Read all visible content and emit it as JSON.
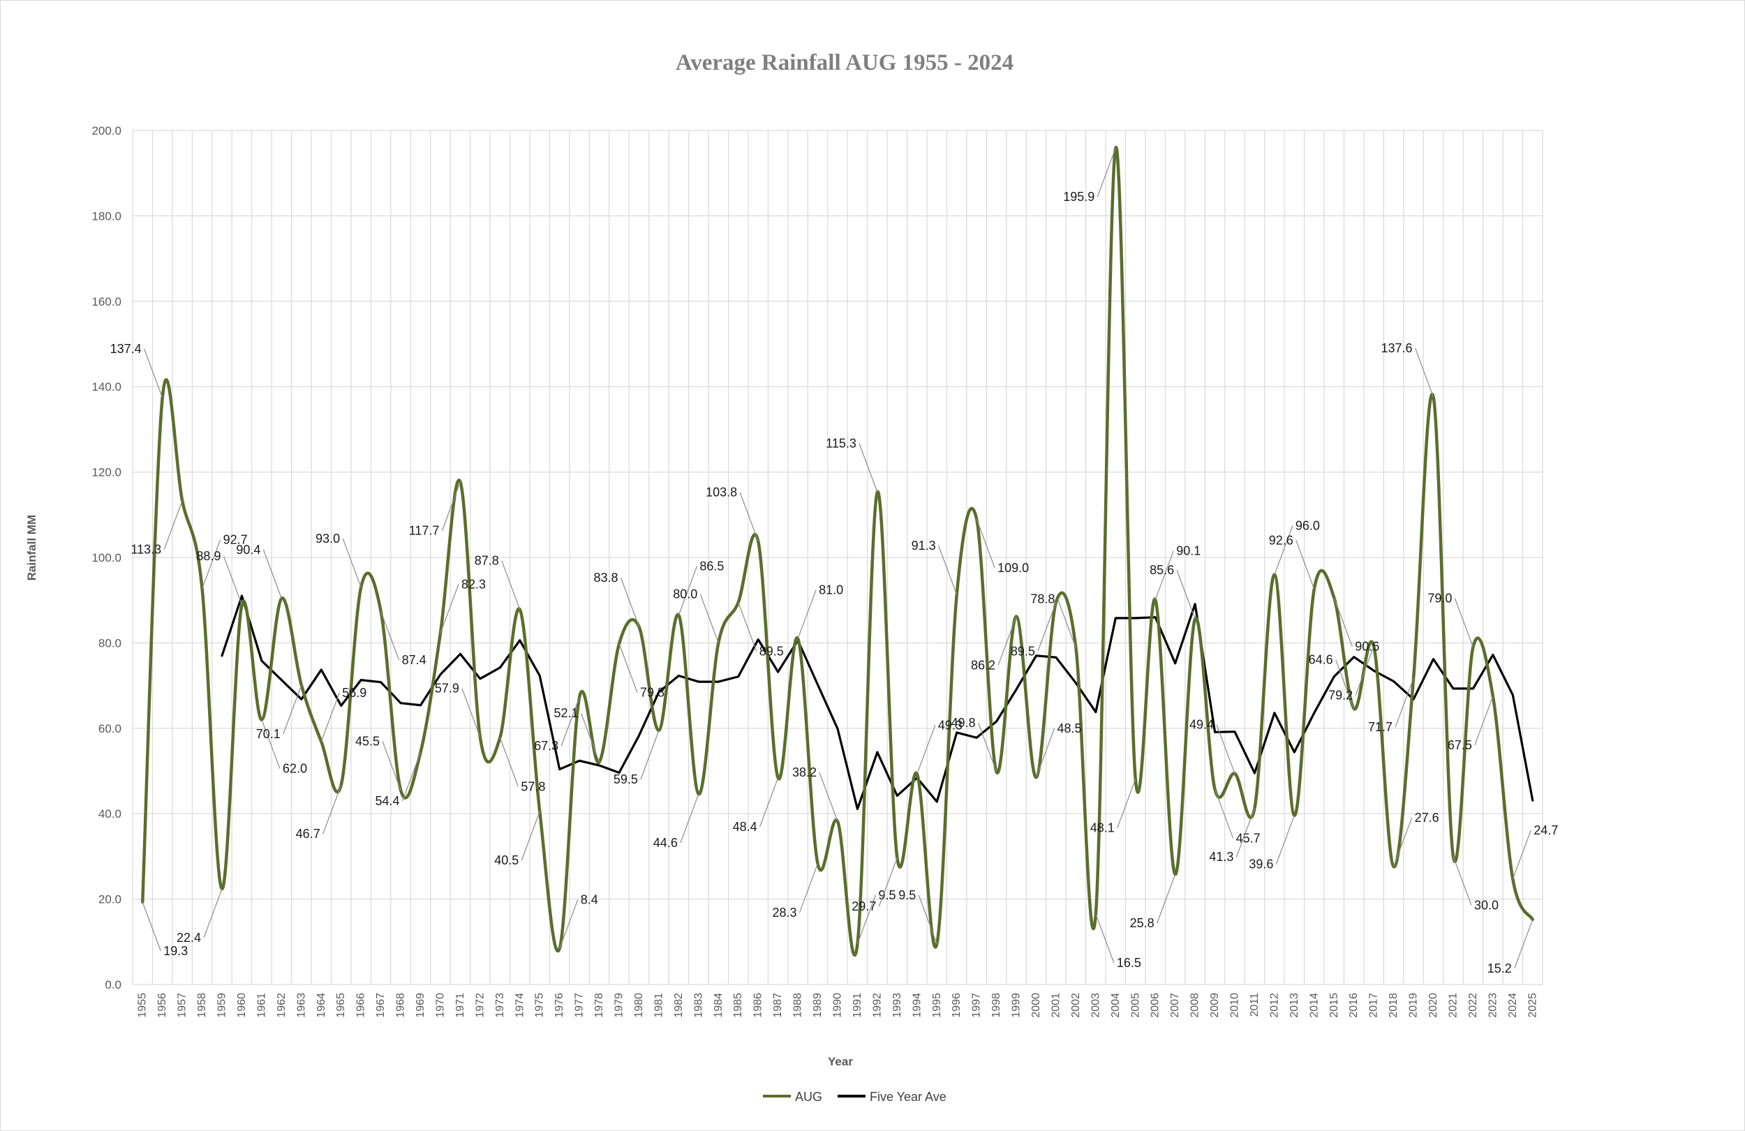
{
  "chart_data": {
    "type": "line",
    "title": "Average Rainfall AUG 1955 - 2024",
    "xlabel": "Year",
    "ylabel": "Rainfall MM",
    "ylim": [
      0,
      200
    ],
    "ytick_step": 20,
    "y_decimals": 1,
    "grid": true,
    "legend_position": "bottom",
    "x": [
      "1955",
      "1956",
      "1957",
      "1958",
      "1959",
      "1960",
      "1961",
      "1962",
      "1963",
      "1964",
      "1965",
      "1966",
      "1967",
      "1968",
      "1969",
      "1970",
      "1971",
      "1972",
      "1973",
      "1974",
      "1975",
      "1976",
      "1977",
      "1978",
      "1979",
      "1980",
      "1981",
      "1982",
      "1983",
      "1984",
      "1985",
      "1986",
      "1987",
      "1988",
      "1989",
      "1990",
      "1991",
      "1992",
      "1993",
      "1994",
      "1995",
      "1996",
      "1997",
      "1998",
      "1999",
      "2000",
      "2001",
      "2002",
      "2003",
      "2004",
      "2005",
      "2006",
      "2007",
      "2008",
      "2009",
      "2010",
      "2011",
      "2012",
      "2013",
      "2014",
      "2015",
      "2016",
      "2017",
      "2018",
      "2019",
      "2020",
      "2021",
      "2022",
      "2023",
      "2024",
      "2025"
    ],
    "series": [
      {
        "name": "AUG",
        "color": "#5a6e2c",
        "smooth": true,
        "values": [
          19.3,
          137.4,
          113.3,
          92.7,
          22.4,
          88.9,
          62.0,
          90.4,
          70.1,
          56.9,
          46.7,
          93.0,
          87.4,
          45.5,
          54.4,
          82.3,
          117.7,
          57.9,
          57.8,
          87.8,
          40.5,
          8.4,
          67.3,
          52.1,
          79.8,
          83.8,
          59.5,
          86.5,
          44.6,
          80.0,
          89.5,
          103.8,
          48.4,
          81.0,
          28.3,
          38.2,
          9.5,
          115.3,
          29.7,
          49.3,
          9.5,
          91.3,
          109.0,
          49.8,
          86.2,
          48.5,
          89.5,
          78.8,
          16.5,
          195.9,
          48.1,
          90.1,
          25.8,
          85.6,
          45.7,
          49.4,
          41.3,
          96.0,
          39.6,
          92.6,
          90.6,
          64.6,
          79.2,
          27.6,
          71.7,
          137.6,
          30.0,
          79.0,
          67.5,
          24.7,
          15.2
        ]
      },
      {
        "name": "Five Year Ave",
        "color": "#000000",
        "smooth": false,
        "values": [
          null,
          null,
          null,
          null,
          77.0,
          91.0,
          75.8,
          71.3,
          66.8,
          73.7,
          65.3,
          71.3,
          70.8,
          65.9,
          65.4,
          72.6,
          77.4,
          71.6,
          74.2,
          80.6,
          72.3,
          50.4,
          52.4,
          51.3,
          49.6,
          58.3,
          68.5,
          72.3,
          70.9,
          70.9,
          72.1,
          80.8,
          73.2,
          80.6,
          70.2,
          59.9,
          41.1,
          54.4,
          44.2,
          48.4,
          42.8,
          59.0,
          57.8,
          61.6,
          69.1,
          77.0,
          76.6,
          70.6,
          63.8,
          85.8,
          85.8,
          86.0,
          75.2,
          89.1,
          59.1,
          59.2,
          49.5,
          63.6,
          54.4,
          63.6,
          72.1,
          76.7,
          73.5,
          71.0,
          66.8,
          76.2,
          69.3,
          69.3,
          77.2,
          67.8,
          43.1
        ]
      }
    ],
    "data_labels": [
      {
        "i": 0,
        "text": "19.3"
      },
      {
        "i": 1,
        "text": "137.4"
      },
      {
        "i": 2,
        "text": "113.3"
      },
      {
        "i": 3,
        "text": "92.7"
      },
      {
        "i": 4,
        "text": "22.4"
      },
      {
        "i": 5,
        "text": "88.9"
      },
      {
        "i": 6,
        "text": "62.0"
      },
      {
        "i": 7,
        "text": "90.4"
      },
      {
        "i": 8,
        "text": "70.1"
      },
      {
        "i": 9,
        "text": "56.9"
      },
      {
        "i": 10,
        "text": "46.7"
      },
      {
        "i": 11,
        "text": "93.0"
      },
      {
        "i": 12,
        "text": "87.4"
      },
      {
        "i": 13,
        "text": "45.5"
      },
      {
        "i": 14,
        "text": "54.4"
      },
      {
        "i": 15,
        "text": "82.3"
      },
      {
        "i": 16,
        "text": "117.7"
      },
      {
        "i": 17,
        "text": "57.9"
      },
      {
        "i": 18,
        "text": "57.8"
      },
      {
        "i": 19,
        "text": "87.8"
      },
      {
        "i": 20,
        "text": "40.5"
      },
      {
        "i": 21,
        "text": "8.4"
      },
      {
        "i": 22,
        "text": "67.3"
      },
      {
        "i": 23,
        "text": "52.1"
      },
      {
        "i": 24,
        "text": "79.8"
      },
      {
        "i": 25,
        "text": "83.8"
      },
      {
        "i": 26,
        "text": "59.5"
      },
      {
        "i": 27,
        "text": "86.5"
      },
      {
        "i": 28,
        "text": "44.6"
      },
      {
        "i": 29,
        "text": "80.0"
      },
      {
        "i": 30,
        "text": "89.5"
      },
      {
        "i": 31,
        "text": "103.8"
      },
      {
        "i": 32,
        "text": "48.4"
      },
      {
        "i": 33,
        "text": "81.0"
      },
      {
        "i": 34,
        "text": "28.3"
      },
      {
        "i": 35,
        "text": "38.2"
      },
      {
        "i": 36,
        "text": "9.5"
      },
      {
        "i": 37,
        "text": "115.3"
      },
      {
        "i": 38,
        "text": "29.7"
      },
      {
        "i": 39,
        "text": "49.3"
      },
      {
        "i": 40,
        "text": "9.5"
      },
      {
        "i": 41,
        "text": "91.3"
      },
      {
        "i": 42,
        "text": "109.0"
      },
      {
        "i": 43,
        "text": "49.8"
      },
      {
        "i": 44,
        "text": "86.2"
      },
      {
        "i": 45,
        "text": "48.5"
      },
      {
        "i": 46,
        "text": "89.5"
      },
      {
        "i": 47,
        "text": "78.8"
      },
      {
        "i": 48,
        "text": "16.5"
      },
      {
        "i": 49,
        "text": "195.9"
      },
      {
        "i": 50,
        "text": "48.1"
      },
      {
        "i": 51,
        "text": "90.1"
      },
      {
        "i": 52,
        "text": "25.8"
      },
      {
        "i": 53,
        "text": "85.6"
      },
      {
        "i": 54,
        "text": "45.7"
      },
      {
        "i": 55,
        "text": "49.4"
      },
      {
        "i": 56,
        "text": "41.3"
      },
      {
        "i": 57,
        "text": "96.0"
      },
      {
        "i": 58,
        "text": "39.6"
      },
      {
        "i": 59,
        "text": "92.6"
      },
      {
        "i": 60,
        "text": "90.6"
      },
      {
        "i": 61,
        "text": "64.6"
      },
      {
        "i": 62,
        "text": "79.2"
      },
      {
        "i": 63,
        "text": "27.6"
      },
      {
        "i": 64,
        "text": "71.7"
      },
      {
        "i": 65,
        "text": "137.6"
      },
      {
        "i": 66,
        "text": "30.0"
      },
      {
        "i": 67,
        "text": "79.0"
      },
      {
        "i": 68,
        "text": "67.5"
      },
      {
        "i": 69,
        "text": "24.7"
      },
      {
        "i": 70,
        "text": "15.2"
      }
    ]
  }
}
